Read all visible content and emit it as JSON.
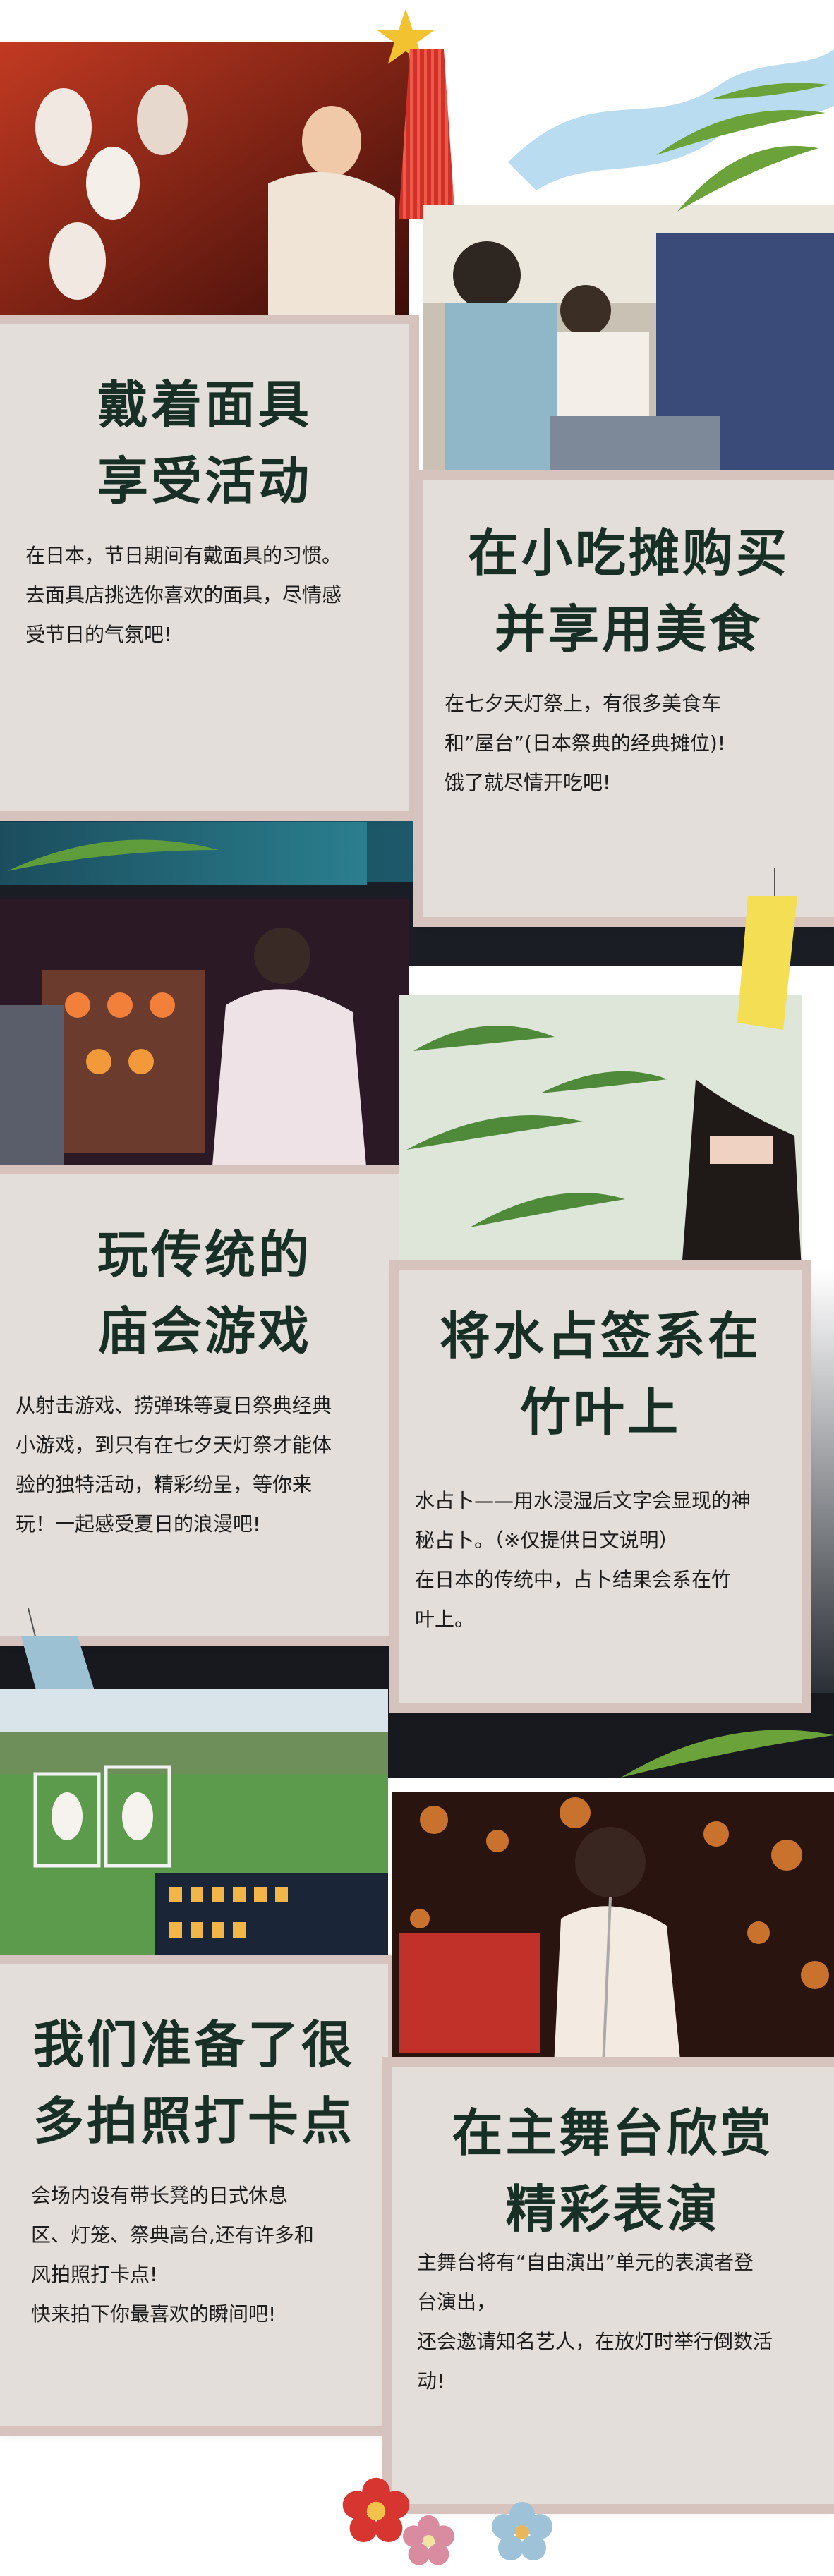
{
  "colors": {
    "card_bg": "#e3ded9",
    "card_border": "#d6c3be",
    "title": "#172f24",
    "text": "#1c1c1c"
  },
  "sections": [
    {
      "id": "masks",
      "title_lines": [
        "戴着面具",
        "享受活动"
      ],
      "body_lines": [
        "在日本，节日期间有戴面具的习惯。",
        "去面具店挑选你喜欢的面具，尽情感",
        "受节日的气氛吧!"
      ]
    },
    {
      "id": "food",
      "title_lines": [
        "在小吃摊购买",
        "并享用美食"
      ],
      "body_lines": [
        "在七夕天灯祭上，有很多美食车",
        "和”屋台”(日本祭典的经典摊位)!",
        "饿了就尽情开吃吧!"
      ]
    },
    {
      "id": "games",
      "title_lines": [
        "玩传统的",
        "庙会游戏"
      ],
      "body_lines": [
        "从射击游戏、捞弹珠等夏日祭典经典",
        "小游戏，到只有在七夕天灯祭才能体",
        "验的独特活动，精彩纷呈，等你来",
        "玩！一起感受夏日的浪漫吧!"
      ]
    },
    {
      "id": "fortune",
      "title_lines": [
        "将水占签系在",
        "竹叶上"
      ],
      "body_lines": [
        "水占卜——用水浸湿后文字会显现的神",
        "秘占卜。（※仅提供日文说明）",
        "在日本的传统中，占卜结果会系在竹",
        "叶上。"
      ]
    },
    {
      "id": "photo",
      "title_lines": [
        "我们准备了很",
        "多拍照打卡点"
      ],
      "body_lines": [
        "会场内设有带长凳的日式休息",
        "区、灯笼、祭典高台,还有许多和",
        "风拍照打卡点!",
        "快来拍下你最喜欢的瞬间吧!"
      ]
    },
    {
      "id": "stage",
      "title_lines": [
        "在主舞台欣赏",
        "精彩表演"
      ],
      "body_lines": [
        "主舞台将有“自由演出”单元的表演者登",
        "台演出，",
        "还会邀请知名艺人，在放灯时举行倒数活",
        "动!"
      ]
    }
  ]
}
